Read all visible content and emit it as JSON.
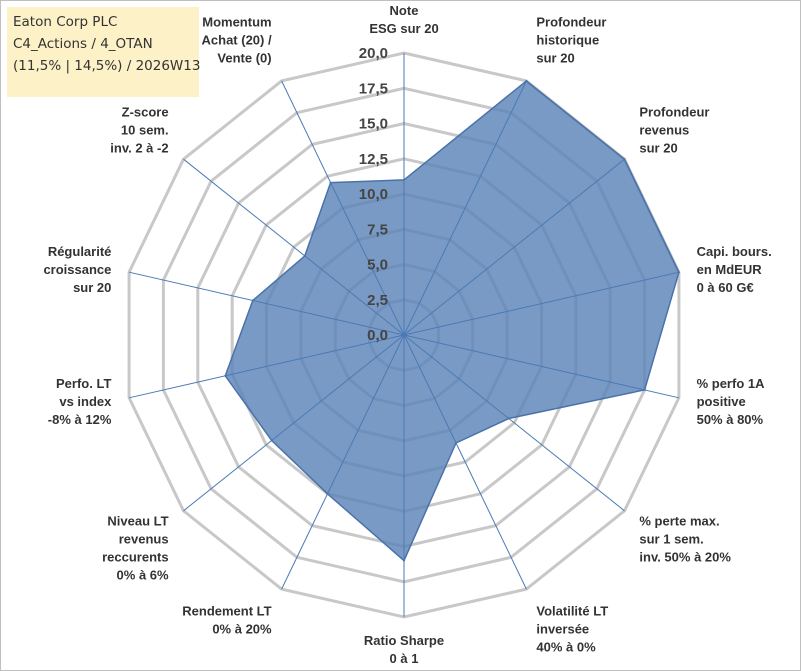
{
  "header": {
    "line1": "Eaton Corp PLC",
    "line2": "C4_Actions / 4_OTAN",
    "line3": "(11,5% | 14,5%) / 2026W13"
  },
  "colors": {
    "fill": "#5b84b7",
    "stroke": "#4a72aa",
    "grid": "#c8c8c8",
    "spoke": "#4a7ab5",
    "title_bg": "#fdf1c8"
  },
  "chart_data": {
    "type": "radar",
    "title": "Eaton Corp PLC",
    "rmin": 0,
    "rmax": 20,
    "ticks": [
      "0,0",
      "2,5",
      "5,0",
      "7,5",
      "10,0",
      "12,5",
      "15,0",
      "17,5",
      "20,0"
    ],
    "tick_values": [
      0,
      2.5,
      5,
      7.5,
      10,
      12.5,
      15,
      17.5,
      20
    ],
    "axes": [
      {
        "label": [
          "Note",
          "ESG sur 20"
        ],
        "value": 11.0
      },
      {
        "label": [
          "Profondeur",
          "historique",
          "sur 20"
        ],
        "value": 20.0
      },
      {
        "label": [
          "Profondeur",
          "revenus",
          "sur 20"
        ],
        "value": 20.0
      },
      {
        "label": [
          "Capi. bours.",
          "en MdEUR",
          "0 à 60 G€"
        ],
        "value": 20.0
      },
      {
        "label": [
          "% perfo 1A",
          "positive",
          "50% à 80%"
        ],
        "value": 17.5
      },
      {
        "label": [
          "% perte max.",
          "sur 1 sem.",
          "inv. 50% à 20%"
        ],
        "value": 9.5
      },
      {
        "label": [
          "Volatilité LT",
          "inversée",
          "40% à 0%"
        ],
        "value": 8.5
      },
      {
        "label": [
          "Ratio Sharpe",
          "0 à 1"
        ],
        "value": 16.0
      },
      {
        "label": [
          "Rendement LT",
          "0% à 20%"
        ],
        "value": 12.5
      },
      {
        "label": [
          "Niveau LT",
          "revenus",
          "reccurents",
          "0% à 6%"
        ],
        "value": 12.0
      },
      {
        "label": [
          "Perfo. LT",
          "vs index",
          "-8% à 12%"
        ],
        "value": 13.0
      },
      {
        "label": [
          "Régularité",
          "croissance",
          "sur 20"
        ],
        "value": 11.0
      },
      {
        "label": [
          "Z-score",
          "10 sem.",
          "inv. 2 à -2"
        ],
        "value": 9.0
      },
      {
        "label": [
          "Momentum",
          "Achat (20) /",
          "Vente (0)"
        ],
        "value": 12.0
      }
    ]
  }
}
